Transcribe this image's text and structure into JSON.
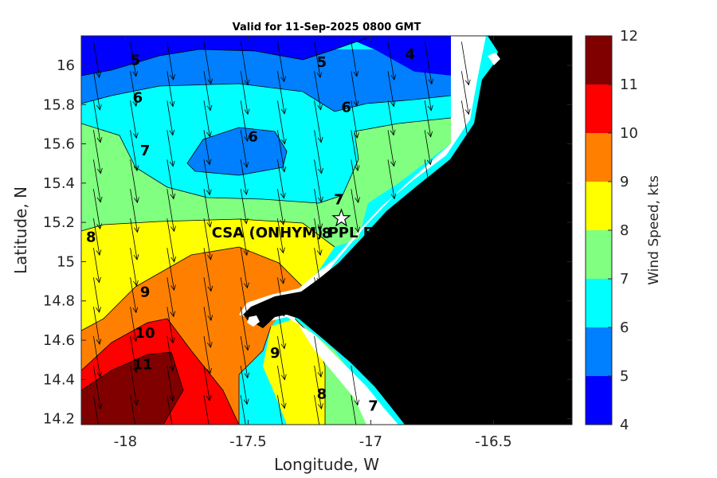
{
  "title": "Valid for 11-Sep-2025 0800 GMT",
  "x_axis": {
    "label": "Longitude, W",
    "range": [
      -18.18,
      -16.18
    ],
    "ticks": [
      {
        "value": -18,
        "label": "-18"
      },
      {
        "value": -17.5,
        "label": "-17.5"
      },
      {
        "value": -17,
        "label": "-17"
      },
      {
        "value": -16.5,
        "label": "-16.5"
      }
    ]
  },
  "y_axis": {
    "label": "Latitude, N",
    "range": [
      14.17,
      16.15
    ],
    "ticks": [
      {
        "value": 14.2,
        "label": "14.2"
      },
      {
        "value": 14.4,
        "label": "14.4"
      },
      {
        "value": 14.6,
        "label": "14.6"
      },
      {
        "value": 14.8,
        "label": "14.8"
      },
      {
        "value": 15,
        "label": "15"
      },
      {
        "value": 15.2,
        "label": "15.2"
      },
      {
        "value": 15.4,
        "label": "15.4"
      },
      {
        "value": 15.6,
        "label": "15.6"
      },
      {
        "value": 15.8,
        "label": "15.8"
      },
      {
        "value": 16,
        "label": "16"
      }
    ]
  },
  "colorbar": {
    "label": "Wind Speed, kts",
    "min": 4,
    "max": 12,
    "levels": [
      {
        "from": 4,
        "to": 5,
        "color": "#0000ff"
      },
      {
        "from": 5,
        "to": 6,
        "color": "#0080ff"
      },
      {
        "from": 6,
        "to": 7,
        "color": "#00ffff"
      },
      {
        "from": 7,
        "to": 8,
        "color": "#80ff80"
      },
      {
        "from": 8,
        "to": 9,
        "color": "#ffff00"
      },
      {
        "from": 9,
        "to": 10,
        "color": "#ff8000"
      },
      {
        "from": 10,
        "to": 11,
        "color": "#ff0000"
      },
      {
        "from": 11,
        "to": 12,
        "color": "#800000"
      }
    ],
    "tick_labels": [
      "4",
      "5",
      "6",
      "7",
      "8",
      "9",
      "10",
      "11",
      "12"
    ]
  },
  "site": {
    "label": "CSA (ONHYM) PPL EP",
    "lon": -17.12,
    "lat": 15.22,
    "marker": "star-icon"
  },
  "land_color": "#000000",
  "contour_labels": [
    {
      "text": "5",
      "lon": -17.96,
      "lat": 16.03
    },
    {
      "text": "5",
      "lon": -17.2,
      "lat": 16.02
    },
    {
      "text": "4",
      "lon": -16.84,
      "lat": 16.06
    },
    {
      "text": "6",
      "lon": -17.95,
      "lat": 15.84
    },
    {
      "text": "6",
      "lon": -17.1,
      "lat": 15.79
    },
    {
      "text": "6",
      "lon": -17.48,
      "lat": 15.64
    },
    {
      "text": "7",
      "lon": -17.92,
      "lat": 15.57
    },
    {
      "text": "7",
      "lon": -17.13,
      "lat": 15.32
    },
    {
      "text": "8",
      "lon": -18.14,
      "lat": 15.13
    },
    {
      "text": "8",
      "lon": -17.18,
      "lat": 15.15
    },
    {
      "text": "9",
      "lon": -17.92,
      "lat": 14.85
    },
    {
      "text": "10",
      "lon": -17.92,
      "lat": 14.64
    },
    {
      "text": "9",
      "lon": -17.39,
      "lat": 14.54
    },
    {
      "text": "11",
      "lon": -17.93,
      "lat": 14.48
    },
    {
      "text": "8",
      "lon": -17.2,
      "lat": 14.33
    },
    {
      "text": "7",
      "lon": -16.99,
      "lat": 14.27
    }
  ],
  "wind_vectors": {
    "units": "kts",
    "grid_lons": [
      -18.13,
      -17.98,
      -17.83,
      -17.68,
      -17.53,
      -17.38,
      -17.23,
      -17.08,
      -16.93,
      -16.78,
      -16.63
    ],
    "grid_lats": [
      16.12,
      15.97,
      15.82,
      15.67,
      15.52,
      15.37,
      15.22,
      15.07,
      14.92,
      14.77,
      14.62,
      14.47,
      14.32
    ],
    "direction_from_deg": 340
  }
}
